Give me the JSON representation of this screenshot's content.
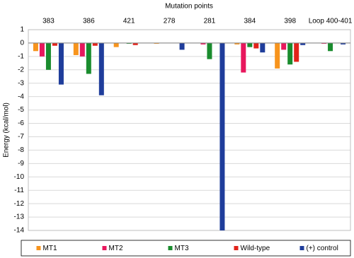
{
  "chart_data": {
    "type": "bar",
    "title": "Mutation points",
    "y_label": "Energy (kcal/mol)",
    "categories": [
      "383",
      "386",
      "421",
      "278",
      "281",
      "384",
      "398",
      "Loop 400-401"
    ],
    "series": [
      {
        "name": "MT1",
        "color": "#f7941d",
        "values": [
          -0.6,
          -0.9,
          -0.3,
          -0.05,
          0,
          -0.1,
          -1.9,
          0
        ]
      },
      {
        "name": "MT2",
        "color": "#e8175d",
        "values": [
          -1.0,
          -1.0,
          0,
          0,
          -0.1,
          -2.2,
          -0.5,
          -0.05
        ]
      },
      {
        "name": "MT3",
        "color": "#1a8c2e",
        "values": [
          -2.0,
          -2.3,
          -0.05,
          0,
          -1.2,
          -0.3,
          -1.6,
          -0.6
        ]
      },
      {
        "name": "Wild-type",
        "color": "#e2231a",
        "values": [
          -0.2,
          -0.2,
          -0.15,
          0,
          0,
          -0.4,
          -1.4,
          0
        ]
      },
      {
        "name": "(+) control",
        "color": "#1f3d9b",
        "values": [
          -3.1,
          -3.9,
          0,
          -0.5,
          -14,
          -0.7,
          -0.15,
          -0.1
        ]
      }
    ],
    "ylim": [
      1,
      -14
    ],
    "yticks": [
      1,
      0,
      -1,
      -2,
      -3,
      -4,
      -5,
      -6,
      -7,
      -8,
      -9,
      -10,
      -11,
      -12,
      -13,
      -14
    ],
    "grid": true,
    "legend": "bottom"
  }
}
